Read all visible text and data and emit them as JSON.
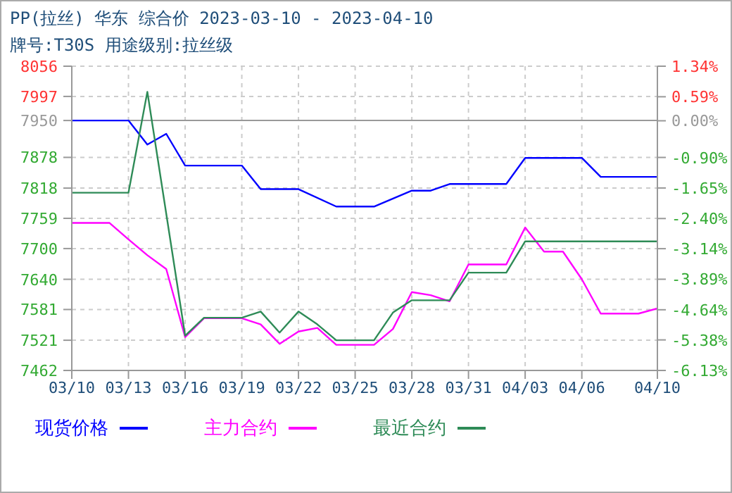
{
  "chart_data": {
    "type": "line",
    "title": "PP(拉丝) 华东 综合价 2023-03-10 - 2023-04-10",
    "subtitle": "牌号:T30S 用途级别:拉丝级",
    "xlim": [
      "2023-03-10",
      "2023-04-10"
    ],
    "xticks": [
      {
        "value": "2023-03-10",
        "label": "03/10"
      },
      {
        "value": "2023-03-13",
        "label": "03/13"
      },
      {
        "value": "2023-03-16",
        "label": "03/16"
      },
      {
        "value": "2023-03-19",
        "label": "03/19"
      },
      {
        "value": "2023-03-22",
        "label": "03/22"
      },
      {
        "value": "2023-03-25",
        "label": "03/25"
      },
      {
        "value": "2023-03-28",
        "label": "03/28"
      },
      {
        "value": "2023-03-31",
        "label": "03/31"
      },
      {
        "value": "2023-04-03",
        "label": "04/03"
      },
      {
        "value": "2023-04-06",
        "label": "04/06"
      },
      {
        "value": "2023-04-10",
        "label": "04/10"
      }
    ],
    "ylim": [
      7462,
      8056
    ],
    "yticks": [
      7462,
      7521,
      7581,
      7640,
      7700,
      7759,
      7818,
      7878,
      7950,
      7997,
      8056
    ],
    "y2lim": [
      -6.13,
      1.34
    ],
    "y2ticks": [
      {
        "value": -6.13,
        "label": "-6.13%"
      },
      {
        "value": -5.38,
        "label": "-5.38%"
      },
      {
        "value": -4.64,
        "label": "-4.64%"
      },
      {
        "value": -3.89,
        "label": "-3.89%"
      },
      {
        "value": -3.14,
        "label": "-3.14%"
      },
      {
        "value": -2.4,
        "label": "-2.40%"
      },
      {
        "value": -1.65,
        "label": "-1.65%"
      },
      {
        "value": -0.9,
        "label": "-0.90%"
      },
      {
        "value": 0,
        "label": "0.00%"
      },
      {
        "value": 0.59,
        "label": "0.59%"
      },
      {
        "value": 1.34,
        "label": "1.34%"
      }
    ],
    "ref_lines": [
      {
        "axis": "y",
        "value": 7950,
        "color": "#999999",
        "line_style": "solid"
      }
    ],
    "grid": true,
    "legend": "bottom",
    "marker": "none",
    "line_style": "solid",
    "series": [
      {
        "name": "现货价格",
        "color": "#0000ff",
        "x": [
          "2023-03-10",
          "2023-03-13",
          "2023-03-14",
          "2023-03-15",
          "2023-03-16",
          "2023-03-19",
          "2023-03-20",
          "2023-03-22",
          "2023-03-24",
          "2023-03-26",
          "2023-03-28",
          "2023-03-29",
          "2023-03-30",
          "2023-04-02",
          "2023-04-03",
          "2023-04-06",
          "2023-04-07",
          "2023-04-10"
        ],
        "values": [
          7950,
          7950,
          7903,
          7924,
          7862,
          7862,
          7816,
          7816,
          7782,
          7782,
          7813,
          7813,
          7826,
          7826,
          7877,
          7877,
          7840,
          7840
        ]
      },
      {
        "name": "主力合约",
        "color": "#ff00ff",
        "x": [
          "2023-03-10",
          "2023-03-12",
          "2023-03-13",
          "2023-03-14",
          "2023-03-15",
          "2023-03-16",
          "2023-03-17",
          "2023-03-19",
          "2023-03-20",
          "2023-03-21",
          "2023-03-22",
          "2023-03-23",
          "2023-03-24",
          "2023-03-26",
          "2023-03-27",
          "2023-03-28",
          "2023-03-29",
          "2023-03-30",
          "2023-03-31",
          "2023-04-02",
          "2023-04-03",
          "2023-04-04",
          "2023-04-05",
          "2023-04-06",
          "2023-04-07",
          "2023-04-09",
          "2023-04-10"
        ],
        "values": [
          7750,
          7750,
          7718,
          7687,
          7660,
          7527,
          7564,
          7564,
          7552,
          7514,
          7538,
          7545,
          7512,
          7512,
          7543,
          7615,
          7609,
          7597,
          7669,
          7669,
          7741,
          7694,
          7694,
          7640,
          7573,
          7573,
          7583
        ]
      },
      {
        "name": "最近合约",
        "color": "#2e8b57",
        "x": [
          "2023-03-10",
          "2023-03-13",
          "2023-03-14",
          "2023-03-16",
          "2023-03-17",
          "2023-03-19",
          "2023-03-20",
          "2023-03-21",
          "2023-03-22",
          "2023-03-23",
          "2023-03-24",
          "2023-03-26",
          "2023-03-27",
          "2023-03-28",
          "2023-03-30",
          "2023-03-31",
          "2023-04-02",
          "2023-04-03",
          "2023-04-10"
        ],
        "values": [
          7809,
          7809,
          8006,
          7530,
          7565,
          7565,
          7577,
          7536,
          7577,
          7552,
          7521,
          7521,
          7575,
          7599,
          7599,
          7653,
          7653,
          7714,
          7714
        ]
      }
    ]
  }
}
